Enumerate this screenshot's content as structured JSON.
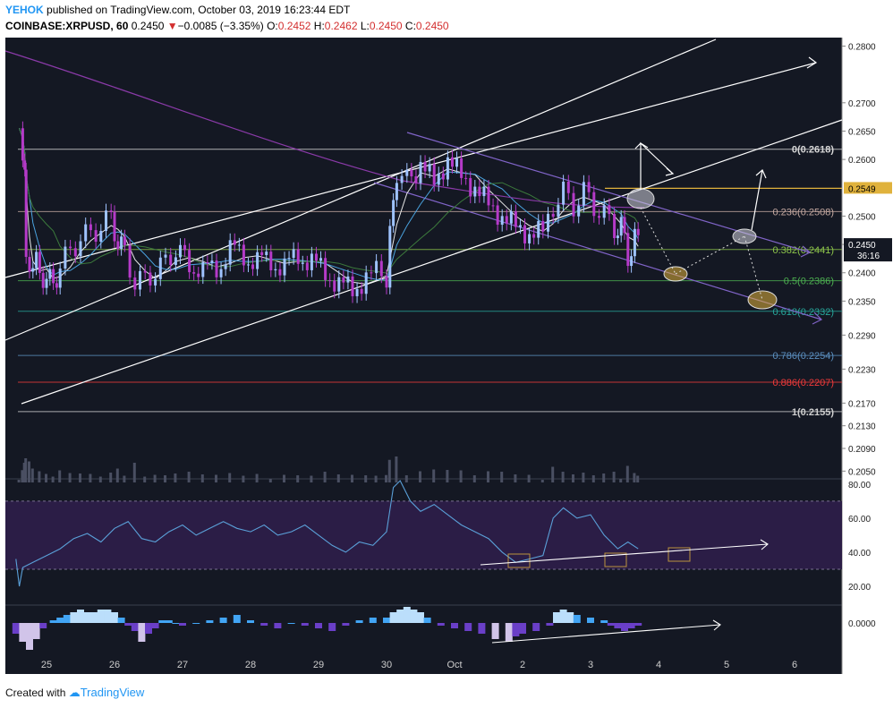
{
  "header": {
    "author": "YEHOK",
    "published_text": "published on TradingView.com, October 03, 2019 16:23:44 EDT",
    "symbol": "COINBASE:XRPUSD, 60",
    "last": "0.2450",
    "change_arrow": "▼",
    "change": "−0.0085 (−3.35%)",
    "o_label": "O:",
    "o": "0.2452",
    "h_label": "H:",
    "h": "0.2462",
    "l_label": "L:",
    "l": "0.2450",
    "c_label": "C:",
    "c": "0.2450"
  },
  "footer": {
    "created_with": "Created with",
    "brand": "TradingView"
  },
  "colors": {
    "background": "#141823",
    "candle_up": "#9fc3ff",
    "candle_down": "#b53ac8",
    "channel": "#ffffff",
    "down_channel": "#8064c8",
    "gold": "#e0b23c",
    "fib_0": "#d8d8d8",
    "fib_236": "#c4a8a0",
    "fib_382": "#8bc34a",
    "fib_5": "#4caf50",
    "fib_618": "#26a69a",
    "fib_786": "#5b8fc0",
    "fib_886": "#ef3a3a",
    "fib_1": "#d0d0d0",
    "rsi": "#5aa0d8",
    "macd_pos": "#42a5f5",
    "macd_pos_light": "#bbdefb",
    "macd_neg": "#6a3fc8",
    "macd_neg_light": "#d1c4e9"
  },
  "chart_data": {
    "type": "candlestick",
    "title": "COINBASE:XRPUSD, 60",
    "x_tick_labels": [
      "25",
      "26",
      "27",
      "28",
      "29",
      "30",
      "Oct",
      "2",
      "3",
      "4",
      "5",
      "6"
    ],
    "ylim": [
      0.203,
      0.2815
    ],
    "y_tick_labels": [
      "0.2800",
      "0.2700",
      "0.2650",
      "0.2600",
      "0.2500",
      "0.2450",
      "0.2400",
      "0.2350",
      "0.2290",
      "0.2230",
      "0.2170",
      "0.2130",
      "0.2090",
      "0.2050"
    ],
    "price_close_path": [
      [
        -0.4,
        0.2655
      ],
      [
        -0.35,
        0.262
      ],
      [
        -0.32,
        0.256
      ],
      [
        -0.3,
        0.245
      ],
      [
        -0.25,
        0.238
      ],
      [
        -0.2,
        0.243
      ],
      [
        -0.1,
        0.24
      ],
      [
        0.0,
        0.239
      ],
      [
        0.1,
        0.238
      ],
      [
        0.2,
        0.241
      ],
      [
        0.35,
        0.244
      ],
      [
        0.5,
        0.246
      ],
      [
        0.65,
        0.247
      ],
      [
        0.8,
        0.248
      ],
      [
        0.95,
        0.25
      ],
      [
        1.05,
        0.245
      ],
      [
        1.15,
        0.244
      ],
      [
        1.3,
        0.238
      ],
      [
        1.45,
        0.239
      ],
      [
        1.6,
        0.24
      ],
      [
        1.75,
        0.242
      ],
      [
        1.9,
        0.244
      ],
      [
        2.1,
        0.242
      ],
      [
        2.3,
        0.24
      ],
      [
        2.5,
        0.241
      ],
      [
        2.7,
        0.244
      ],
      [
        2.9,
        0.243
      ],
      [
        3.1,
        0.242
      ],
      [
        3.3,
        0.242
      ],
      [
        3.5,
        0.241
      ],
      [
        3.7,
        0.243
      ],
      [
        3.9,
        0.242
      ],
      [
        4.1,
        0.24
      ],
      [
        4.3,
        0.238
      ],
      [
        4.5,
        0.237
      ],
      [
        4.7,
        0.239
      ],
      [
        4.85,
        0.24
      ],
      [
        5.0,
        0.2395
      ],
      [
        5.05,
        0.248
      ],
      [
        5.15,
        0.258
      ],
      [
        5.3,
        0.256
      ],
      [
        5.5,
        0.259
      ],
      [
        5.7,
        0.256
      ],
      [
        5.9,
        0.26
      ],
      [
        6.1,
        0.257
      ],
      [
        6.3,
        0.255
      ],
      [
        6.5,
        0.252
      ],
      [
        6.7,
        0.25
      ],
      [
        6.9,
        0.248
      ],
      [
        7.1,
        0.247
      ],
      [
        7.3,
        0.247
      ],
      [
        7.45,
        0.252
      ],
      [
        7.6,
        0.254
      ],
      [
        7.75,
        0.252
      ],
      [
        7.9,
        0.254
      ],
      [
        8.05,
        0.252
      ],
      [
        8.2,
        0.25
      ],
      [
        8.35,
        0.248
      ],
      [
        8.45,
        0.248
      ],
      [
        8.55,
        0.243
      ],
      [
        8.65,
        0.246
      ],
      [
        8.7,
        0.245
      ]
    ],
    "volume_notes": "spikes at 25, 26.5, 30, 2.4, 3.4",
    "fib_levels": [
      {
        "ratio": "0",
        "price": 0.2618,
        "label": "0(0.2618)",
        "color_key": "fib_0"
      },
      {
        "ratio": "0.236",
        "price": 0.2508,
        "label": "0.236(0.2508)",
        "color_key": "fib_236"
      },
      {
        "ratio": "0.382",
        "price": 0.2441,
        "label": "0.382(0.2441)",
        "color_key": "fib_382"
      },
      {
        "ratio": "0.5",
        "price": 0.2386,
        "label": "0.5(0.2386)",
        "color_key": "fib_5"
      },
      {
        "ratio": "0.618",
        "price": 0.2332,
        "label": "0.618(0.2332)",
        "color_key": "fib_618"
      },
      {
        "ratio": "0.786",
        "price": 0.2254,
        "label": "0.786(0.2254)",
        "color_key": "fib_786"
      },
      {
        "ratio": "0.886",
        "price": 0.2207,
        "label": "0.886(0.2207)",
        "color_key": "fib_886"
      },
      {
        "ratio": "1",
        "price": 0.2155,
        "label": "1(0.2155)",
        "color_key": "fib_1"
      }
    ],
    "price_badges": [
      {
        "label": "0.2549",
        "price": 0.2549,
        "color_key": "gold"
      },
      {
        "label": "0.2450",
        "price": 0.245,
        "color_key": "background",
        "sub": "36:16"
      }
    ],
    "rsi": {
      "y_tick_labels": [
        "80.00",
        "60.00",
        "40.00",
        "20.00"
      ],
      "ylim": [
        10,
        82
      ],
      "band": [
        30,
        70
      ],
      "path": [
        [
          -0.45,
          36
        ],
        [
          -0.4,
          20
        ],
        [
          -0.35,
          31
        ],
        [
          -0.2,
          34
        ],
        [
          0.0,
          38
        ],
        [
          0.2,
          42
        ],
        [
          0.4,
          48
        ],
        [
          0.6,
          51
        ],
        [
          0.8,
          46
        ],
        [
          1.0,
          54
        ],
        [
          1.2,
          58
        ],
        [
          1.4,
          48
        ],
        [
          1.6,
          46
        ],
        [
          1.8,
          52
        ],
        [
          2.0,
          56
        ],
        [
          2.2,
          50
        ],
        [
          2.4,
          54
        ],
        [
          2.6,
          58
        ],
        [
          2.8,
          54
        ],
        [
          3.0,
          52
        ],
        [
          3.2,
          56
        ],
        [
          3.4,
          50
        ],
        [
          3.6,
          52
        ],
        [
          3.8,
          56
        ],
        [
          4.0,
          50
        ],
        [
          4.2,
          44
        ],
        [
          4.4,
          40
        ],
        [
          4.6,
          46
        ],
        [
          4.8,
          44
        ],
        [
          5.0,
          52
        ],
        [
          5.1,
          78
        ],
        [
          5.2,
          82
        ],
        [
          5.35,
          70
        ],
        [
          5.5,
          64
        ],
        [
          5.7,
          68
        ],
        [
          5.9,
          62
        ],
        [
          6.1,
          56
        ],
        [
          6.3,
          52
        ],
        [
          6.5,
          48
        ],
        [
          6.7,
          40
        ],
        [
          6.9,
          34
        ],
        [
          7.1,
          36
        ],
        [
          7.3,
          38
        ],
        [
          7.45,
          60
        ],
        [
          7.6,
          66
        ],
        [
          7.8,
          60
        ],
        [
          8.0,
          62
        ],
        [
          8.2,
          50
        ],
        [
          8.4,
          42
        ],
        [
          8.55,
          46
        ],
        [
          8.7,
          42
        ]
      ]
    },
    "macd": {
      "y_tick_labels": [
        "0.0000"
      ],
      "ylim": [
        -0.012,
        0.006
      ],
      "histogram": [
        [
          -0.45,
          -0.004
        ],
        [
          -0.35,
          -0.007
        ],
        [
          -0.25,
          -0.01
        ],
        [
          -0.15,
          -0.006
        ],
        [
          -0.05,
          -0.002
        ],
        [
          0.1,
          0.001
        ],
        [
          0.2,
          0.002
        ],
        [
          0.3,
          0.003
        ],
        [
          0.4,
          0.004
        ],
        [
          0.5,
          0.005
        ],
        [
          0.6,
          0.004
        ],
        [
          0.7,
          0.004
        ],
        [
          0.8,
          0.005
        ],
        [
          0.9,
          0.005
        ],
        [
          1.0,
          0.004
        ],
        [
          1.1,
          0.002
        ],
        [
          1.2,
          -0.001
        ],
        [
          1.3,
          -0.003
        ],
        [
          1.4,
          -0.007
        ],
        [
          1.5,
          -0.004
        ],
        [
          1.6,
          -0.002
        ],
        [
          1.7,
          0.001
        ],
        [
          1.8,
          0.001
        ],
        [
          1.9,
          0.0
        ],
        [
          2.0,
          -0.001
        ],
        [
          2.2,
          0.0
        ],
        [
          2.4,
          0.001
        ],
        [
          2.6,
          0.002
        ],
        [
          2.8,
          0.003
        ],
        [
          3.0,
          0.001
        ],
        [
          3.2,
          -0.001
        ],
        [
          3.4,
          -0.002
        ],
        [
          3.6,
          0.0
        ],
        [
          3.8,
          -0.001
        ],
        [
          4.0,
          -0.002
        ],
        [
          4.2,
          -0.003
        ],
        [
          4.4,
          -0.001
        ],
        [
          4.6,
          0.001
        ],
        [
          4.8,
          0.002
        ],
        [
          5.0,
          0.002
        ],
        [
          5.1,
          0.004
        ],
        [
          5.2,
          0.005
        ],
        [
          5.3,
          0.006
        ],
        [
          5.4,
          0.005
        ],
        [
          5.5,
          0.004
        ],
        [
          5.6,
          0.002
        ],
        [
          5.8,
          -0.001
        ],
        [
          6.0,
          -0.002
        ],
        [
          6.2,
          -0.003
        ],
        [
          6.4,
          -0.004
        ],
        [
          6.6,
          -0.006
        ],
        [
          6.8,
          -0.007
        ],
        [
          6.9,
          -0.005
        ],
        [
          7.0,
          -0.004
        ],
        [
          7.2,
          -0.003
        ],
        [
          7.4,
          -0.001
        ],
        [
          7.5,
          0.004
        ],
        [
          7.6,
          0.005
        ],
        [
          7.7,
          0.004
        ],
        [
          7.8,
          0.003
        ],
        [
          8.0,
          0.002
        ],
        [
          8.2,
          0.001
        ],
        [
          8.3,
          -0.001
        ],
        [
          8.4,
          -0.002
        ],
        [
          8.5,
          -0.003
        ],
        [
          8.6,
          -0.002
        ],
        [
          8.7,
          -0.001
        ]
      ]
    }
  }
}
